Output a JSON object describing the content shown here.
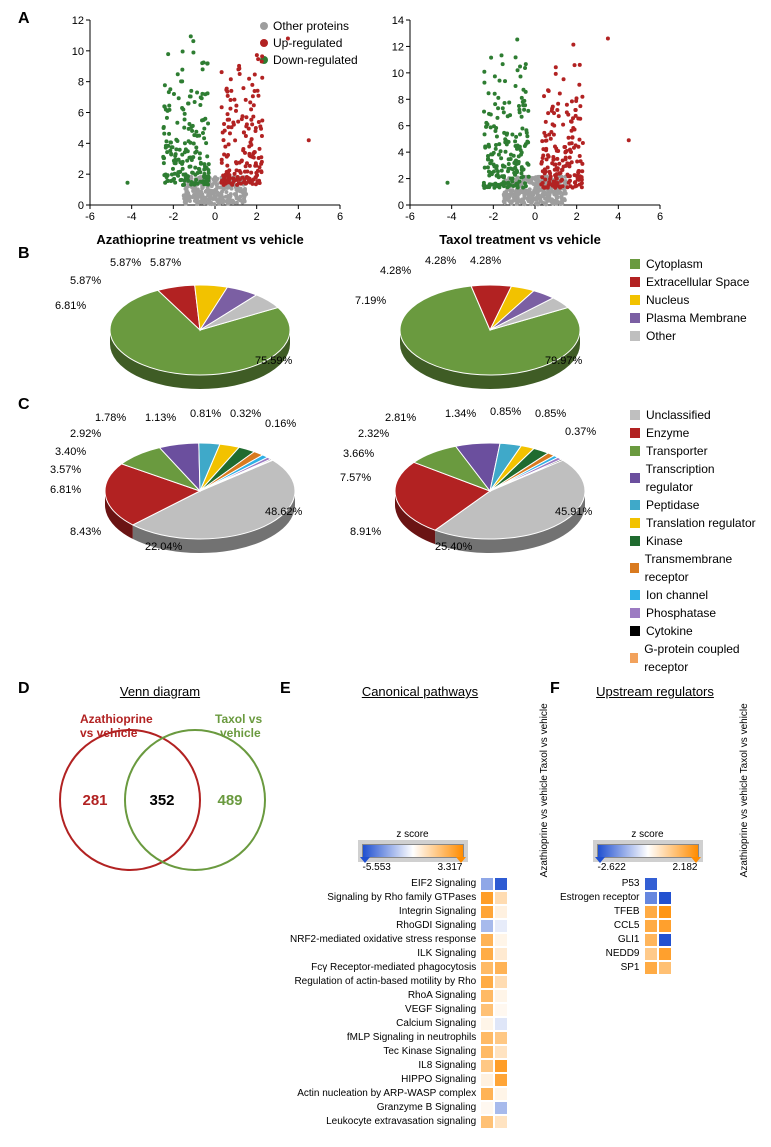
{
  "volcano": {
    "legend": [
      {
        "label": "Other proteins",
        "color": "#9e9e9e"
      },
      {
        "label": "Up-regulated",
        "color": "#b22222"
      },
      {
        "label": "Down-regulated",
        "color": "#2e7d32"
      }
    ],
    "left": {
      "title": "Azathioprine treatment vs vehicle",
      "ylim": [
        0,
        12
      ],
      "xlim": [
        -6,
        6
      ],
      "yticks": [
        0,
        2,
        4,
        6,
        8,
        10,
        12
      ],
      "xticks": [
        -6,
        -4,
        -2,
        0,
        2,
        4,
        6
      ]
    },
    "right": {
      "title": "Taxol treatment vs vehicle",
      "ylim": [
        0,
        14
      ],
      "xlim": [
        -6,
        6
      ],
      "yticks": [
        0,
        2,
        4,
        6,
        8,
        10,
        12,
        14
      ],
      "xticks": [
        -6,
        -4,
        -2,
        0,
        2,
        4,
        6
      ]
    },
    "point_colors": {
      "other": "#9e9e9e",
      "up": "#b22222",
      "down": "#2e7d32"
    }
  },
  "pieB": {
    "legend": [
      {
        "label": "Cytoplasm",
        "color": "#6a9a3f"
      },
      {
        "label": "Extracellular Space",
        "color": "#b22222"
      },
      {
        "label": "Nucleus",
        "color": "#f2c200"
      },
      {
        "label": "Plasma Membrane",
        "color": "#7b5fa3"
      },
      {
        "label": "Other",
        "color": "#bfbfbf"
      }
    ],
    "left": {
      "slices": [
        {
          "label": "Cytoplasm",
          "value": 75.59,
          "color": "#6a9a3f"
        },
        {
          "label": "Extracellular Space",
          "value": 6.81,
          "color": "#b22222"
        },
        {
          "label": "Nucleus",
          "value": 5.87,
          "color": "#f2c200"
        },
        {
          "label": "Plasma Membrane",
          "value": 5.87,
          "color": "#7b5fa3"
        },
        {
          "label": "Other",
          "value": 5.87,
          "color": "#bfbfbf"
        }
      ],
      "labels": [
        "5.87%",
        "5.87%",
        "5.87%",
        "6.81%",
        "75.59%"
      ]
    },
    "right": {
      "slices": [
        {
          "label": "Cytoplasm",
          "value": 79.97,
          "color": "#6a9a3f"
        },
        {
          "label": "Extracellular Space",
          "value": 7.19,
          "color": "#b22222"
        },
        {
          "label": "Nucleus",
          "value": 4.28,
          "color": "#f2c200"
        },
        {
          "label": "Plasma Membrane",
          "value": 4.28,
          "color": "#7b5fa3"
        },
        {
          "label": "Other",
          "value": 4.28,
          "color": "#bfbfbf"
        }
      ],
      "labels": [
        "4.28%",
        "4.28%",
        "4.28%",
        "7.19%",
        "79.97%"
      ]
    }
  },
  "pieC": {
    "legend": [
      {
        "label": "Unclassified",
        "color": "#bfbfbf"
      },
      {
        "label": "Enzyme",
        "color": "#b22222"
      },
      {
        "label": "Transporter",
        "color": "#6a9a3f"
      },
      {
        "label": "Transcription regulator",
        "color": "#6b4f9e"
      },
      {
        "label": "Peptidase",
        "color": "#3fa9c9"
      },
      {
        "label": "Translation regulator",
        "color": "#f2c200"
      },
      {
        "label": "Kinase",
        "color": "#1f6b2f"
      },
      {
        "label": "Transmembrane receptor",
        "color": "#d97a1f"
      },
      {
        "label": "Ion channel",
        "color": "#2fb1e6"
      },
      {
        "label": "Phosphatase",
        "color": "#9c7bc2"
      },
      {
        "label": "Cytokine",
        "color": "#000000"
      },
      {
        "label": "G-protein coupled receptor",
        "color": "#f2a25c"
      }
    ],
    "left": {
      "slices": [
        {
          "value": 48.62,
          "color": "#bfbfbf"
        },
        {
          "value": 22.04,
          "color": "#b22222"
        },
        {
          "value": 8.43,
          "color": "#6a9a3f"
        },
        {
          "value": 6.81,
          "color": "#6b4f9e"
        },
        {
          "value": 3.57,
          "color": "#3fa9c9"
        },
        {
          "value": 3.4,
          "color": "#f2c200"
        },
        {
          "value": 2.92,
          "color": "#1f6b2f"
        },
        {
          "value": 1.78,
          "color": "#d97a1f"
        },
        {
          "value": 1.13,
          "color": "#2fb1e6"
        },
        {
          "value": 0.81,
          "color": "#9c7bc2"
        },
        {
          "value": 0.32,
          "color": "#000000"
        },
        {
          "value": 0.16,
          "color": "#f2a25c"
        }
      ],
      "labels": [
        "1.78%",
        "2.92%",
        "3.40%",
        "3.57%",
        "6.81%",
        "8.43%",
        "22.04%",
        "48.62%",
        "1.13%",
        "0.81%",
        "0.32%",
        "0.16%"
      ]
    },
    "right": {
      "slices": [
        {
          "value": 45.91,
          "color": "#bfbfbf"
        },
        {
          "value": 25.4,
          "color": "#b22222"
        },
        {
          "value": 8.91,
          "color": "#6a9a3f"
        },
        {
          "value": 7.57,
          "color": "#6b4f9e"
        },
        {
          "value": 3.66,
          "color": "#3fa9c9"
        },
        {
          "value": 2.32,
          "color": "#f2c200"
        },
        {
          "value": 2.81,
          "color": "#1f6b2f"
        },
        {
          "value": 1.34,
          "color": "#d97a1f"
        },
        {
          "value": 0.85,
          "color": "#2fb1e6"
        },
        {
          "value": 0.85,
          "color": "#9c7bc2"
        },
        {
          "value": 0.37,
          "color": "#000000"
        }
      ],
      "labels": [
        "2.81%",
        "2.32%",
        "3.66%",
        "7.57%",
        "8.91%",
        "25.40%",
        "45.91%",
        "1.34%",
        "0.85%",
        "0.85%",
        "0.37%"
      ]
    }
  },
  "venn": {
    "title": "Venn diagram",
    "left_label": "Azathioprine vs vehicle",
    "right_label": "Taxol vs vehicle",
    "left_only": 281,
    "overlap": 352,
    "right_only": 489,
    "left_color": "#b22222",
    "right_color": "#6a9a3f"
  },
  "heatE": {
    "title": "Canonical pathways",
    "zmin": -5.553,
    "zmax": 3.317,
    "cols": [
      "Azathioprine vs vehicle",
      "Taxol vs vehicle"
    ],
    "rows": [
      {
        "name": "EIF2 Signaling",
        "v": [
          -2.8,
          -5.2
        ]
      },
      {
        "name": "Signaling by Rho family GTPases",
        "v": [
          2.8,
          1.0
        ]
      },
      {
        "name": "Integrin Signaling",
        "v": [
          2.6,
          0.4
        ]
      },
      {
        "name": "RhoGDI Signaling",
        "v": [
          -2.2,
          -0.6
        ]
      },
      {
        "name": "NRF2-mediated oxidative stress response",
        "v": [
          2.2,
          0.3
        ]
      },
      {
        "name": "ILK Signaling",
        "v": [
          2.4,
          0.6
        ]
      },
      {
        "name": "Fcγ Receptor-mediated phagocytosis",
        "v": [
          2.0,
          2.2
        ]
      },
      {
        "name": "Regulation of actin-based motility by Rho",
        "v": [
          2.4,
          1.0
        ]
      },
      {
        "name": "RhoA Signaling",
        "v": [
          2.0,
          0.3
        ]
      },
      {
        "name": "VEGF Signaling",
        "v": [
          1.8,
          0.2
        ]
      },
      {
        "name": "Calcium Signaling",
        "v": [
          0.3,
          -0.8
        ]
      },
      {
        "name": "fMLP Signaling in neutrophils",
        "v": [
          2.0,
          1.6
        ]
      },
      {
        "name": "Tec Kinase Signaling",
        "v": [
          2.0,
          0.8
        ]
      },
      {
        "name": "IL8 Signaling",
        "v": [
          1.6,
          2.8
        ]
      },
      {
        "name": "HIPPO Signaling",
        "v": [
          0.4,
          2.6
        ]
      },
      {
        "name": "Actin nucleation by ARP-WASP complex",
        "v": [
          2.2,
          0.3
        ]
      },
      {
        "name": "Granzyme B Signaling",
        "v": [
          0.2,
          -2.2
        ]
      },
      {
        "name": "Leukocyte extravasation signaling",
        "v": [
          1.8,
          0.8
        ]
      }
    ]
  },
  "heatF": {
    "title": "Upstream regulators",
    "zmin": -2.622,
    "zmax": 2.182,
    "cols": [
      "Azathioprine vs vehicle",
      "Taxol vs vehicle"
    ],
    "rows": [
      {
        "name": "P53",
        "v": [
          -2.4,
          0.0
        ]
      },
      {
        "name": "Estrogen receptor",
        "v": [
          -1.8,
          -2.6
        ]
      },
      {
        "name": "TFEB",
        "v": [
          1.6,
          2.0
        ]
      },
      {
        "name": "CCL5",
        "v": [
          1.6,
          1.8
        ]
      },
      {
        "name": "GLI1",
        "v": [
          1.4,
          -2.6
        ]
      },
      {
        "name": "NEDD9",
        "v": [
          1.0,
          1.8
        ]
      },
      {
        "name": "SP1",
        "v": [
          1.6,
          1.2
        ]
      }
    ]
  }
}
